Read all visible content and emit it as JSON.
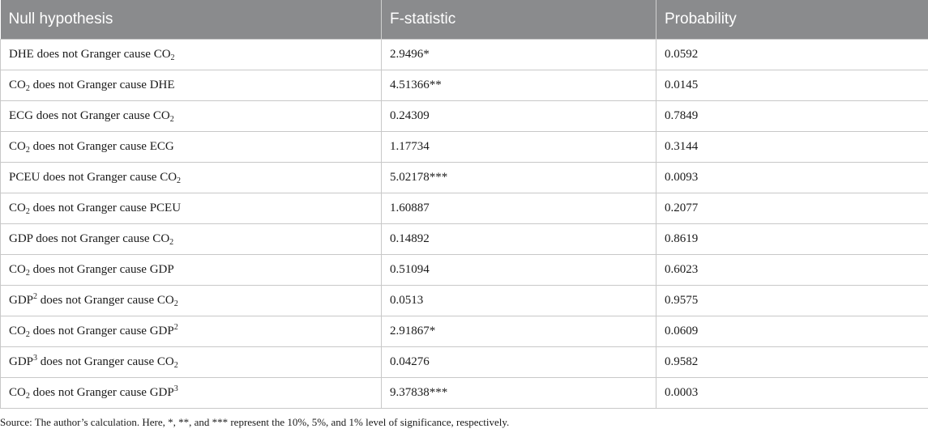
{
  "table": {
    "headers": [
      "Null hypothesis",
      "F-statistic",
      "Probability"
    ],
    "rows": [
      {
        "hypothesis": {
          "pre": "DHE does not Granger cause CO",
          "sub": "2",
          "sup": "",
          "post": ""
        },
        "f_statistic": "2.9496*",
        "probability": "0.0592"
      },
      {
        "hypothesis": {
          "pre": "CO",
          "sub": "2",
          "sup": "",
          "post": " does not Granger cause DHE"
        },
        "f_statistic": "4.51366**",
        "probability": "0.0145"
      },
      {
        "hypothesis": {
          "pre": "ECG does not Granger cause CO",
          "sub": "2",
          "sup": "",
          "post": ""
        },
        "f_statistic": "0.24309",
        "probability": "0.7849"
      },
      {
        "hypothesis": {
          "pre": "CO",
          "sub": "2",
          "sup": "",
          "post": " does not Granger cause ECG"
        },
        "f_statistic": "1.17734",
        "probability": "0.3144"
      },
      {
        "hypothesis": {
          "pre": "PCEU does not Granger cause CO",
          "sub": "2",
          "sup": "",
          "post": ""
        },
        "f_statistic": "5.02178***",
        "probability": "0.0093"
      },
      {
        "hypothesis": {
          "pre": "CO",
          "sub": "2",
          "sup": "",
          "post": " does not Granger cause PCEU"
        },
        "f_statistic": "1.60887",
        "probability": "0.2077"
      },
      {
        "hypothesis": {
          "pre": "GDP does not Granger cause CO",
          "sub": "2",
          "sup": "",
          "post": ""
        },
        "f_statistic": "0.14892",
        "probability": "0.8619"
      },
      {
        "hypothesis": {
          "pre": "CO",
          "sub": "2",
          "sup": "",
          "post": " does not Granger cause GDP"
        },
        "f_statistic": "0.51094",
        "probability": "0.6023"
      },
      {
        "hypothesis": {
          "pre": "GDP",
          "sub": "",
          "sup": "2",
          "post": " does not Granger cause CO",
          "post_sub": "2"
        },
        "f_statistic": "0.0513",
        "probability": "0.9575"
      },
      {
        "hypothesis": {
          "pre": "CO",
          "sub": "2",
          "sup": "",
          "post": " does not Granger cause GDP",
          "post_sup": "2"
        },
        "f_statistic": "2.91867*",
        "probability": "0.0609"
      },
      {
        "hypothesis": {
          "pre": "GDP",
          "sub": "",
          "sup": "3",
          "post": " does not Granger cause CO",
          "post_sub": "2"
        },
        "f_statistic": "0.04276",
        "probability": "0.9582"
      },
      {
        "hypothesis": {
          "pre": "CO",
          "sub": "2",
          "sup": "",
          "post": " does not Granger cause GDP",
          "post_sup": "3"
        },
        "f_statistic": "9.37838***",
        "probability": "0.0003"
      }
    ]
  },
  "note": "Source: The author’s calculation. Here, *, **, and *** represent the 10%, 5%, and 1% level of significance, respectively."
}
